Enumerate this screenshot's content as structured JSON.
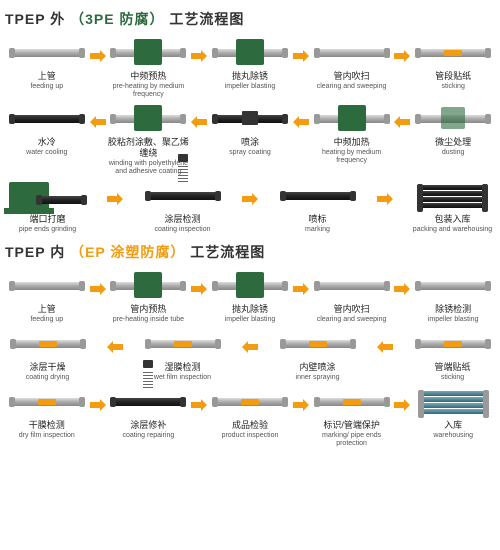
{
  "colors": {
    "green": "#2d6b3f",
    "orange": "#f39c12",
    "pipe_light": "#aaa",
    "pipe_dark": "#222",
    "arrow": "#f39c12",
    "bg": "#ffffff"
  },
  "section1": {
    "title_parts": [
      "TPEP 外",
      "（3PE 防腐）",
      "工艺流程图"
    ],
    "rows": [
      [
        {
          "cn": "上管",
          "en": "feeding up",
          "t": "pipe"
        },
        {
          "cn": "中频预热",
          "en": "pre-heating by medium frequency",
          "t": "green"
        },
        {
          "cn": "抛丸除锈",
          "en": "impeller blasting",
          "t": "green"
        },
        {
          "cn": "管内吹扫",
          "en": "clearing and sweeping",
          "t": "pipe"
        },
        {
          "cn": "管段贴纸",
          "en": "sticking",
          "t": "orange"
        }
      ],
      [
        {
          "cn": "水冷",
          "en": "water cooling",
          "t": "dark"
        },
        {
          "cn": "胶粘剂涂敷、聚乙烯缠绕",
          "en": "winding with polyethylene and adhesive coating",
          "t": "green"
        },
        {
          "cn": "喷涂",
          "en": "spray coating",
          "t": "darkblock"
        },
        {
          "cn": "中频加热",
          "en": "heating by medium frequency",
          "t": "green"
        },
        {
          "cn": "微尘处理",
          "en": "dusting",
          "t": "greenlt"
        }
      ],
      [
        {
          "cn": "端口打磨",
          "en": "pipe ends grinding",
          "t": "machine"
        },
        {
          "cn": "涂层检测",
          "en": "coating inspection",
          "t": "spring"
        },
        {
          "cn": "喷标",
          "en": "marking",
          "t": "dark"
        },
        {
          "cn": "包装入库",
          "en": "packing and warehousing",
          "t": "stack"
        }
      ]
    ],
    "arrow_dirs": [
      [
        "r",
        "r",
        "r",
        "r"
      ],
      [
        "l",
        "l",
        "l",
        "l"
      ],
      [
        "r",
        "r",
        "r"
      ]
    ]
  },
  "section2": {
    "title_parts": [
      "TPEP 内",
      "（EP 涂塑防腐）",
      "工艺流程图"
    ],
    "rows": [
      [
        {
          "cn": "上管",
          "en": "feeding up",
          "t": "pipe"
        },
        {
          "cn": "管内预热",
          "en": "pre-heating inside tube",
          "t": "green"
        },
        {
          "cn": "抛丸除锈",
          "en": "impeller blasting",
          "t": "green"
        },
        {
          "cn": "管内吹扫",
          "en": "clearing and sweeping",
          "t": "pipe"
        },
        {
          "cn": "除锈检测",
          "en": "impeller blasting",
          "t": "pipe"
        }
      ],
      [
        {
          "cn": "涂层干燥",
          "en": "coating drying",
          "t": "orange"
        },
        {
          "cn": "湿膜检测",
          "en": "wet film inspection",
          "t": "orange"
        },
        {
          "cn": "内壁喷涂",
          "en": "inner spraying",
          "t": "orange"
        },
        {
          "cn": "管端贴纸",
          "en": "sticking",
          "t": "orange"
        }
      ],
      [
        {
          "cn": "干膜检测",
          "en": "dry film inspection",
          "t": "orange"
        },
        {
          "cn": "涂层修补",
          "en": "coating repairing",
          "t": "spring"
        },
        {
          "cn": "成品检验",
          "en": "product inspection",
          "t": "orange"
        },
        {
          "cn": "标识/管端保护",
          "en": "marking/ pipe ends protection",
          "t": "orange"
        },
        {
          "cn": "入库",
          "en": "warehousing",
          "t": "stackb"
        }
      ]
    ],
    "arrow_dirs": [
      [
        "r",
        "r",
        "r",
        "r"
      ],
      [
        "l",
        "l",
        "l"
      ],
      [
        "r",
        "r",
        "r",
        "r"
      ]
    ]
  }
}
